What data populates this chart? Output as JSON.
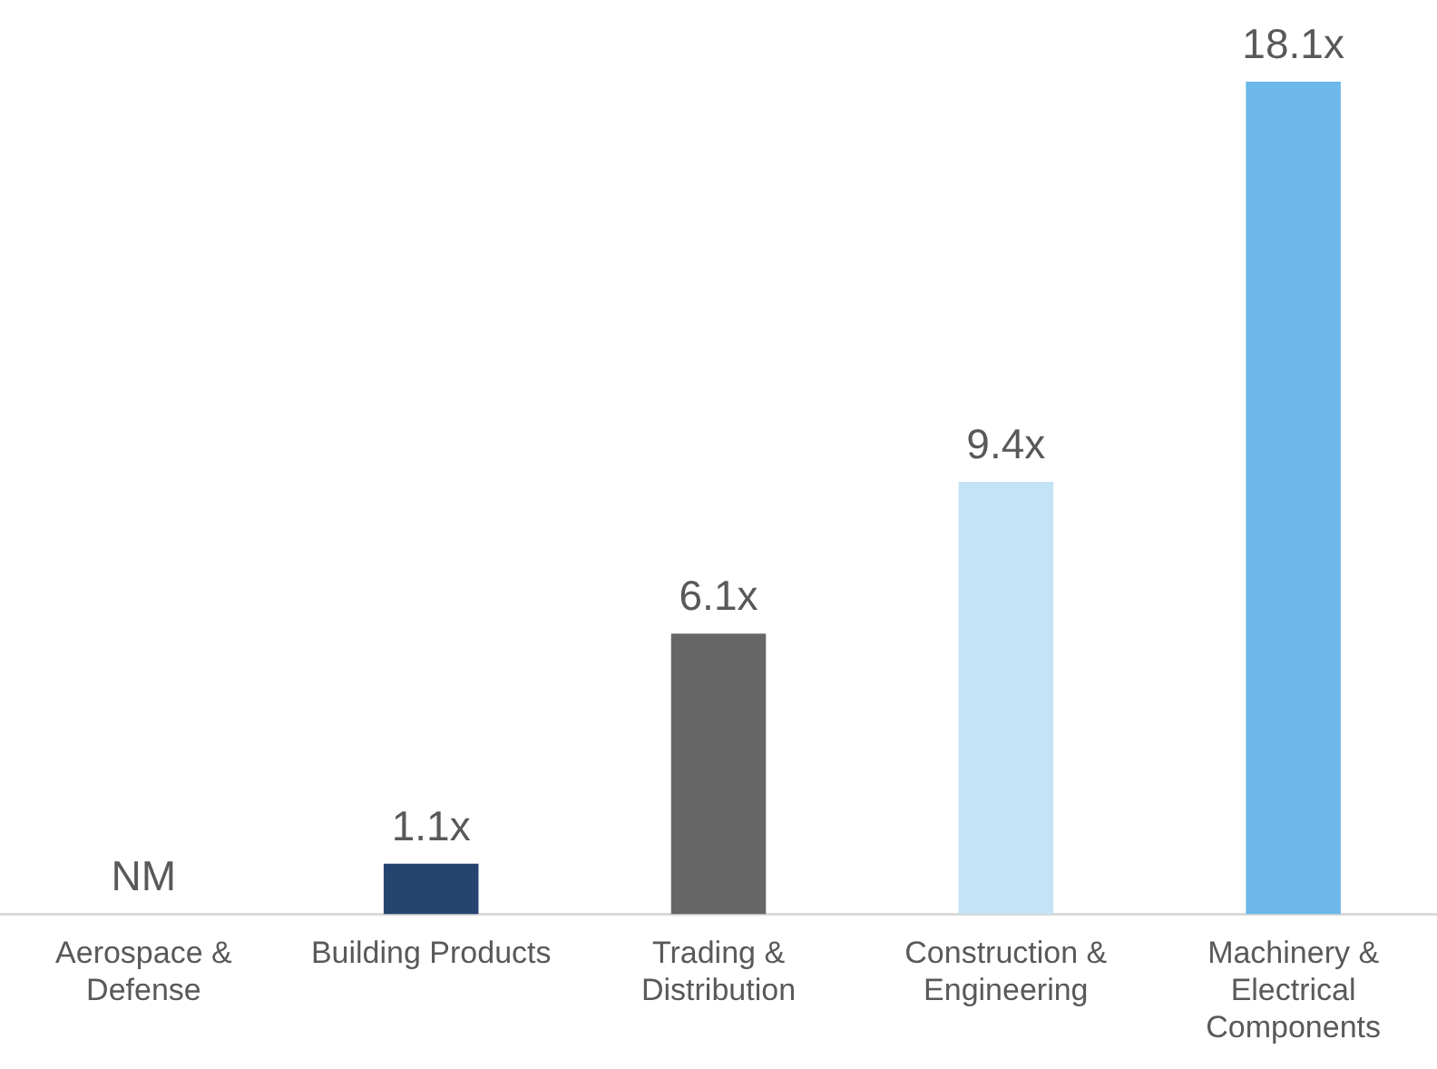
{
  "chart_data": {
    "type": "bar",
    "categories": [
      "Aerospace & Defense",
      "Building Products",
      "Trading & Distribution",
      "Construction & Engineering",
      "Machinery & Electrical Components"
    ],
    "values": [
      null,
      1.1,
      6.1,
      9.4,
      18.1
    ],
    "colors": [
      "#264470",
      "#264470",
      "#666666",
      "#c5e3f7",
      "#6cb8ea"
    ],
    "value_labels": [
      "NM",
      "1.1x",
      "6.1x",
      "9.4x",
      "18.1x"
    ]
  }
}
